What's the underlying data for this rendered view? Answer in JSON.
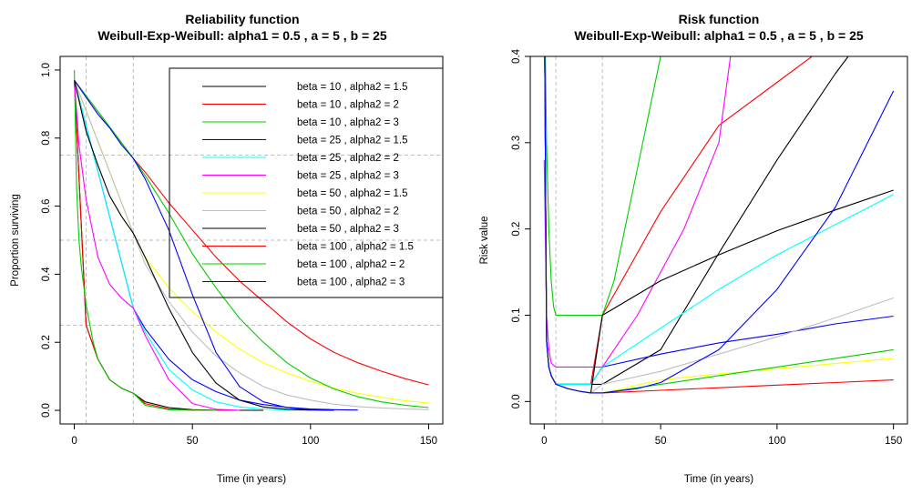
{
  "chart_data": [
    {
      "type": "line",
      "title": "Reliability function",
      "subtitle": "Weibull-Exp-Weibull: alpha1 = 0.5 , a = 5 , b = 25",
      "xlabel": "Time (in years)",
      "ylabel": "Proportion surviving",
      "xlim": [
        0,
        150
      ],
      "ylim": [
        0,
        1.0
      ],
      "xticks": [
        "0",
        "50",
        "100",
        "150"
      ],
      "yticks": [
        "0.0",
        "0.2",
        "0.4",
        "0.6",
        "0.8",
        "1.0"
      ],
      "reference_lines": {
        "vertical": [
          5,
          25
        ],
        "horizontal": [
          0.25,
          0.5,
          0.75
        ]
      },
      "legend_position": "top-right",
      "series": [
        {
          "name": "beta = 10 , alpha2 = 1.5",
          "color": "#000000",
          "x": [
            0,
            5,
            10,
            15,
            20,
            25,
            30,
            40,
            50,
            60,
            70,
            80
          ],
          "y": [
            0.97,
            0.25,
            0.15,
            0.09,
            0.065,
            0.05,
            0.025,
            0.008,
            0.002,
            0.0005,
            0.0001,
            0
          ]
        },
        {
          "name": "beta = 10 , alpha2 = 2",
          "color": "#FF0000",
          "x": [
            0,
            5,
            10,
            15,
            20,
            25,
            30,
            40,
            50,
            60,
            70
          ],
          "y": [
            0.97,
            0.25,
            0.15,
            0.09,
            0.065,
            0.05,
            0.02,
            0.004,
            0.001,
            0.0002,
            0
          ]
        },
        {
          "name": "beta = 10 , alpha2 = 3",
          "color": "#00CD00",
          "x": [
            0,
            1,
            2,
            3,
            5,
            8,
            10,
            15,
            20,
            25,
            30,
            40,
            50,
            60
          ],
          "y": [
            1.0,
            0.65,
            0.5,
            0.42,
            0.31,
            0.2,
            0.15,
            0.09,
            0.065,
            0.05,
            0.015,
            0.002,
            0.0003,
            0
          ]
        },
        {
          "name": "beta = 25 , alpha2 = 1.5",
          "color": "#0000FF",
          "x": [
            0,
            25,
            30,
            40,
            50,
            60,
            70,
            80,
            90,
            100,
            110,
            120
          ],
          "y": [
            0.97,
            0.3,
            0.24,
            0.15,
            0.09,
            0.055,
            0.03,
            0.017,
            0.009,
            0.004,
            0.002,
            0.001
          ]
        },
        {
          "name": "beta = 25 , alpha2 = 2",
          "color": "#00FFFF",
          "x": [
            0,
            25,
            30,
            40,
            50,
            60,
            70,
            80,
            90,
            100
          ],
          "y": [
            0.97,
            0.3,
            0.23,
            0.12,
            0.06,
            0.025,
            0.01,
            0.004,
            0.001,
            0
          ]
        },
        {
          "name": "beta = 25 , alpha2 = 3",
          "color": "#FF00FF",
          "x": [
            0,
            2,
            5,
            10,
            15,
            20,
            25,
            30,
            40,
            50,
            60,
            70
          ],
          "y": [
            0.97,
            0.78,
            0.62,
            0.45,
            0.37,
            0.33,
            0.3,
            0.22,
            0.09,
            0.02,
            0.003,
            0
          ]
        },
        {
          "name": "beta = 50 , alpha2 = 1.5",
          "color": "#FFFF00",
          "x": [
            0,
            25,
            30,
            40,
            50,
            60,
            70,
            80,
            90,
            100,
            110,
            120,
            130,
            140,
            150
          ],
          "y": [
            0.97,
            0.52,
            0.45,
            0.36,
            0.29,
            0.23,
            0.18,
            0.14,
            0.11,
            0.085,
            0.065,
            0.05,
            0.038,
            0.028,
            0.022
          ]
        },
        {
          "name": "beta = 50 , alpha2 = 2",
          "color": "#BEBEBE",
          "x": [
            0,
            25,
            30,
            40,
            50,
            60,
            70,
            80,
            90,
            100,
            110,
            120,
            130,
            140,
            150
          ],
          "y": [
            0.97,
            0.52,
            0.43,
            0.32,
            0.23,
            0.16,
            0.11,
            0.07,
            0.045,
            0.03,
            0.018,
            0.011,
            0.007,
            0.004,
            0.002
          ]
        },
        {
          "name": "beta = 50 , alpha2 = 3",
          "color": "#000000",
          "x": [
            0,
            5,
            10,
            15,
            20,
            25,
            30,
            40,
            50,
            60,
            70,
            80,
            90,
            100,
            110
          ],
          "y": [
            0.97,
            0.82,
            0.72,
            0.63,
            0.57,
            0.52,
            0.45,
            0.3,
            0.17,
            0.08,
            0.03,
            0.01,
            0.003,
            0.001,
            0
          ]
        },
        {
          "name": "beta = 100 , alpha2 = 1.5",
          "color": "#FF0000",
          "x": [
            0,
            25,
            30,
            40,
            50,
            60,
            70,
            80,
            90,
            100,
            110,
            120,
            130,
            140,
            150
          ],
          "y": [
            0.97,
            0.74,
            0.7,
            0.61,
            0.53,
            0.45,
            0.38,
            0.32,
            0.26,
            0.21,
            0.17,
            0.14,
            0.115,
            0.093,
            0.075
          ]
        },
        {
          "name": "beta = 100 , alpha2 = 2",
          "color": "#00CD00",
          "x": [
            0,
            25,
            30,
            40,
            50,
            60,
            70,
            80,
            90,
            100,
            110,
            120,
            130,
            140,
            150
          ],
          "y": [
            0.97,
            0.74,
            0.69,
            0.58,
            0.46,
            0.36,
            0.27,
            0.2,
            0.14,
            0.095,
            0.063,
            0.04,
            0.025,
            0.015,
            0.008
          ]
        },
        {
          "name": "beta = 100 , alpha2 = 3",
          "color": "#0000FF",
          "x": [
            0,
            5,
            10,
            15,
            20,
            25,
            30,
            40,
            50,
            60,
            70,
            80,
            90,
            100,
            110
          ],
          "y": [
            0.97,
            0.92,
            0.87,
            0.83,
            0.78,
            0.74,
            0.68,
            0.53,
            0.34,
            0.17,
            0.07,
            0.025,
            0.008,
            0.002,
            0.0005
          ]
        }
      ]
    },
    {
      "type": "line",
      "title": "Risk function",
      "subtitle": "Weibull-Exp-Weibull: alpha1 = 0.5 , a = 5 , b = 25",
      "xlabel": "Time (in years)",
      "ylabel": "Risk value",
      "xlim": [
        0,
        150
      ],
      "ylim": [
        0,
        0.4
      ],
      "xticks": [
        "0",
        "50",
        "100",
        "150"
      ],
      "yticks": [
        "0.0",
        "0.1",
        "0.2",
        "0.3",
        "0.4"
      ],
      "reference_lines": {
        "vertical": [
          5,
          25
        ],
        "horizontal": []
      },
      "series": [
        {
          "name": "beta = 10 , alpha2 = 1.5",
          "color": "#000000",
          "x": [
            0,
            1,
            2,
            3,
            5,
            10,
            15,
            20,
            25,
            50,
            75,
            100,
            125,
            150
          ],
          "y": [
            0.5,
            0.07,
            0.04,
            0.03,
            0.02,
            0.02,
            0.02,
            0.02,
            0.02,
            0.06,
            0.172,
            0.28,
            0.38,
            0.47
          ]
        },
        {
          "name": "beta = 10 , alpha2 = 2",
          "color": "#FF0000",
          "x": [
            0,
            1,
            2,
            3,
            5,
            10,
            15,
            20,
            25,
            50,
            75,
            100,
            115
          ],
          "y": [
            0.5,
            0.07,
            0.04,
            0.03,
            0.02,
            0.02,
            0.02,
            0.02,
            0.1,
            0.22,
            0.32,
            0.37,
            0.4
          ]
        },
        {
          "name": "beta = 10 , alpha2 = 3",
          "color": "#00CD00",
          "x": [
            0,
            1,
            2,
            3,
            4,
            5,
            10,
            15,
            20,
            25,
            30,
            40,
            50
          ],
          "y": [
            0.5,
            0.3,
            0.2,
            0.14,
            0.11,
            0.1,
            0.1,
            0.1,
            0.1,
            0.1,
            0.14,
            0.27,
            0.4
          ]
        },
        {
          "name": "beta = 25 , alpha2 = 1.5",
          "color": "#0000FF",
          "x": [
            0,
            1,
            2,
            3,
            5,
            10,
            15,
            20,
            25,
            50,
            75,
            100,
            125,
            150
          ],
          "y": [
            0.5,
            0.07,
            0.04,
            0.03,
            0.02,
            0.02,
            0.02,
            0.02,
            0.04,
            0.055,
            0.068,
            0.078,
            0.09,
            0.099
          ]
        },
        {
          "name": "beta = 25 , alpha2 = 2",
          "color": "#00FFFF",
          "x": [
            0,
            1,
            2,
            3,
            5,
            10,
            15,
            20,
            25,
            50,
            75,
            100,
            125,
            150
          ],
          "y": [
            0.5,
            0.07,
            0.04,
            0.03,
            0.02,
            0.02,
            0.02,
            0.02,
            0.04,
            0.085,
            0.13,
            0.17,
            0.205,
            0.24
          ]
        },
        {
          "name": "beta = 25 , alpha2 = 3",
          "color": "#FF00FF",
          "x": [
            0,
            1,
            2,
            3,
            4,
            5,
            10,
            15,
            20,
            25,
            40,
            50,
            60,
            75,
            80
          ],
          "y": [
            0.28,
            0.1,
            0.06,
            0.045,
            0.042,
            0.04,
            0.04,
            0.04,
            0.04,
            0.04,
            0.1,
            0.15,
            0.2,
            0.3,
            0.4
          ]
        },
        {
          "name": "beta = 50 , alpha2 = 1.5",
          "color": "#FFFF00",
          "x": [
            0,
            1,
            2,
            3,
            5,
            10,
            15,
            20,
            25,
            50,
            75,
            100,
            125,
            150
          ],
          "y": [
            0.5,
            0.07,
            0.04,
            0.03,
            0.02,
            0.015,
            0.012,
            0.01,
            0.01,
            0.025,
            0.032,
            0.038,
            0.044,
            0.05
          ]
        },
        {
          "name": "beta = 50 , alpha2 = 2",
          "color": "#BEBEBE",
          "x": [
            0,
            1,
            2,
            3,
            5,
            10,
            15,
            20,
            25,
            50,
            75,
            100,
            125,
            150
          ],
          "y": [
            0.5,
            0.07,
            0.04,
            0.03,
            0.02,
            0.015,
            0.012,
            0.01,
            0.02,
            0.035,
            0.055,
            0.075,
            0.097,
            0.12
          ]
        },
        {
          "name": "beta = 50 , alpha2 = 3",
          "color": "#000000",
          "x": [
            0,
            1,
            2,
            3,
            5,
            10,
            15,
            20,
            25,
            50,
            75,
            100,
            125,
            150
          ],
          "y": [
            0.5,
            0.07,
            0.04,
            0.03,
            0.02,
            0.015,
            0.012,
            0.01,
            0.1,
            0.14,
            0.17,
            0.198,
            0.222,
            0.245
          ]
        },
        {
          "name": "beta = 100 , alpha2 = 1.5",
          "color": "#FF0000",
          "x": [
            0,
            1,
            2,
            3,
            5,
            10,
            15,
            20,
            25,
            50,
            75,
            100,
            125,
            150
          ],
          "y": [
            0.5,
            0.07,
            0.04,
            0.03,
            0.02,
            0.015,
            0.012,
            0.01,
            0.01,
            0.013,
            0.016,
            0.019,
            0.022,
            0.025
          ]
        },
        {
          "name": "beta = 100 , alpha2 = 2",
          "color": "#00CD00",
          "x": [
            0,
            1,
            2,
            3,
            5,
            10,
            15,
            20,
            25,
            50,
            75,
            100,
            125,
            150
          ],
          "y": [
            0.5,
            0.07,
            0.04,
            0.03,
            0.02,
            0.015,
            0.012,
            0.01,
            0.01,
            0.02,
            0.03,
            0.04,
            0.05,
            0.06
          ]
        },
        {
          "name": "beta = 100 , alpha2 = 3",
          "color": "#0000FF",
          "x": [
            0,
            1,
            2,
            3,
            5,
            10,
            15,
            20,
            25,
            40,
            50,
            75,
            100,
            125,
            150
          ],
          "y": [
            0.5,
            0.07,
            0.04,
            0.03,
            0.02,
            0.015,
            0.012,
            0.01,
            0.01,
            0.015,
            0.022,
            0.06,
            0.13,
            0.225,
            0.36
          ]
        }
      ]
    }
  ]
}
